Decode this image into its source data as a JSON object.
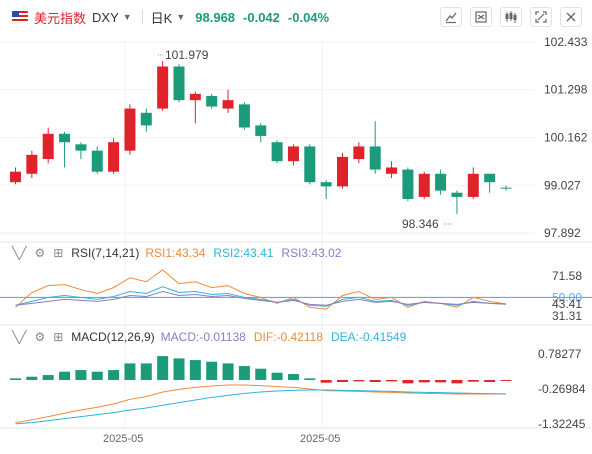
{
  "toolbar": {
    "name": "美元指数",
    "symbol": "DXY",
    "period": "日K",
    "price": "98.968",
    "change": "-0.042",
    "change_pct": "-0.04%"
  },
  "colors": {
    "up": "#e0222a",
    "down": "#1b9b7a",
    "rsi1": "#f08a3c",
    "rsi2": "#2bb6d8",
    "rsi3": "#8e7cc3",
    "dif": "#f08a3c",
    "dea": "#2bb6d8",
    "refline": "#5aa9ff"
  },
  "main_axis": {
    "ticks": [
      "102.433",
      "101.298",
      "100.162",
      "99.027",
      "97.892"
    ]
  },
  "annotations": {
    "high": "101.979",
    "low": "98.346"
  },
  "rsi": {
    "label": "RSI(7,14,21)",
    "rsi1": "RSI1:43.34",
    "rsi2": "RSI2:43.41",
    "rsi3": "RSI3:43.02",
    "ticks": [
      "71.58",
      "50.00",
      "43.41",
      "31.31"
    ]
  },
  "macd": {
    "label": "MACD(12,26,9)",
    "macd": "MACD:-0.01138",
    "dif": "DIF:-0.42118",
    "dea": "DEA:-0.41549",
    "ticks": [
      "0.78277",
      "-0.26984",
      "-1.32245"
    ]
  },
  "time_axis": [
    "2025-05",
    "2025-05"
  ],
  "chart_data": {
    "type": "candlestick",
    "ylim": [
      97.892,
      102.433
    ],
    "candles": [
      {
        "o": 99.1,
        "c": 99.35,
        "h": 99.45,
        "l": 99.05
      },
      {
        "o": 99.3,
        "c": 99.75,
        "h": 99.85,
        "l": 99.2
      },
      {
        "o": 99.65,
        "c": 100.25,
        "h": 100.4,
        "l": 99.55
      },
      {
        "o": 100.25,
        "c": 100.05,
        "h": 100.3,
        "l": 99.45
      },
      {
        "o": 100.0,
        "c": 99.85,
        "h": 100.05,
        "l": 99.65
      },
      {
        "o": 99.85,
        "c": 99.35,
        "h": 99.95,
        "l": 99.3
      },
      {
        "o": 99.35,
        "c": 100.05,
        "h": 100.15,
        "l": 99.3
      },
      {
        "o": 99.85,
        "c": 100.85,
        "h": 100.95,
        "l": 99.75
      },
      {
        "o": 100.75,
        "c": 100.45,
        "h": 100.85,
        "l": 100.3
      },
      {
        "o": 100.85,
        "c": 101.85,
        "h": 101.979,
        "l": 100.8
      },
      {
        "o": 101.85,
        "c": 101.05,
        "h": 101.9,
        "l": 101.0
      },
      {
        "o": 101.05,
        "c": 101.2,
        "h": 101.25,
        "l": 100.5
      },
      {
        "o": 101.15,
        "c": 100.9,
        "h": 101.2,
        "l": 100.85
      },
      {
        "o": 100.85,
        "c": 101.05,
        "h": 101.3,
        "l": 100.75
      },
      {
        "o": 100.95,
        "c": 100.4,
        "h": 101.0,
        "l": 100.35
      },
      {
        "o": 100.45,
        "c": 100.2,
        "h": 100.5,
        "l": 100.05
      },
      {
        "o": 100.05,
        "c": 99.6,
        "h": 100.1,
        "l": 99.55
      },
      {
        "o": 99.6,
        "c": 99.95,
        "h": 100.0,
        "l": 99.5
      },
      {
        "o": 99.95,
        "c": 99.1,
        "h": 100.0,
        "l": 99.05
      },
      {
        "o": 99.1,
        "c": 99.0,
        "h": 99.15,
        "l": 98.7
      },
      {
        "o": 99.0,
        "c": 99.7,
        "h": 99.8,
        "l": 98.95
      },
      {
        "o": 99.65,
        "c": 99.95,
        "h": 100.05,
        "l": 99.55
      },
      {
        "o": 99.95,
        "c": 99.4,
        "h": 100.55,
        "l": 99.3
      },
      {
        "o": 99.3,
        "c": 99.45,
        "h": 99.6,
        "l": 99.2
      },
      {
        "o": 99.4,
        "c": 98.7,
        "h": 99.45,
        "l": 98.65
      },
      {
        "o": 98.75,
        "c": 99.3,
        "h": 99.35,
        "l": 98.7
      },
      {
        "o": 99.3,
        "c": 98.9,
        "h": 99.4,
        "l": 98.8
      },
      {
        "o": 98.85,
        "c": 98.75,
        "h": 98.9,
        "l": 98.346
      },
      {
        "o": 98.75,
        "c": 99.3,
        "h": 99.45,
        "l": 98.7
      },
      {
        "o": 99.3,
        "c": 99.1,
        "h": 99.3,
        "l": 98.85
      },
      {
        "o": 98.97,
        "c": 98.968,
        "h": 99.02,
        "l": 98.9
      }
    ],
    "rsi": {
      "ylim": [
        25,
        82
      ],
      "rsi1": [
        40,
        55,
        62,
        63,
        58,
        54,
        60,
        70,
        66,
        78,
        64,
        66,
        60,
        62,
        54,
        50,
        44,
        50,
        40,
        38,
        52,
        56,
        48,
        50,
        40,
        46,
        44,
        40,
        50,
        46,
        43.34
      ],
      "rsi2": [
        42,
        46,
        50,
        52,
        50,
        48,
        51,
        56,
        54,
        61,
        55,
        56,
        53,
        54,
        50,
        48,
        45,
        48,
        42,
        41,
        48,
        50,
        46,
        47,
        42,
        45,
        44,
        42,
        46,
        44,
        43.41
      ],
      "rsi3": [
        42,
        44,
        46,
        48,
        47,
        46,
        48,
        52,
        51,
        56,
        52,
        53,
        51,
        52,
        49,
        47,
        45,
        47,
        43,
        42,
        46,
        48,
        45,
        46,
        43,
        45,
        44,
        43,
        45,
        44,
        43.02
      ],
      "refline": 50
    },
    "macd": {
      "ylim": [
        -1.32245,
        0.78277
      ],
      "hist": [
        0.05,
        0.1,
        0.15,
        0.25,
        0.3,
        0.25,
        0.3,
        0.5,
        0.5,
        0.72,
        0.65,
        0.6,
        0.55,
        0.5,
        0.42,
        0.34,
        0.22,
        0.18,
        0.05,
        -0.08,
        -0.06,
        -0.04,
        -0.06,
        -0.04,
        -0.1,
        -0.07,
        -0.07,
        -0.1,
        -0.05,
        -0.06,
        -0.01138
      ],
      "dif": [
        -1.28,
        -1.2,
        -1.1,
        -1.0,
        -0.9,
        -0.82,
        -0.72,
        -0.58,
        -0.5,
        -0.36,
        -0.28,
        -0.22,
        -0.18,
        -0.15,
        -0.15,
        -0.17,
        -0.2,
        -0.22,
        -0.27,
        -0.32,
        -0.33,
        -0.34,
        -0.36,
        -0.37,
        -0.39,
        -0.4,
        -0.41,
        -0.42,
        -0.42,
        -0.42,
        -0.42118
      ],
      "dea": [
        -1.32,
        -1.28,
        -1.22,
        -1.16,
        -1.1,
        -1.04,
        -0.98,
        -0.9,
        -0.84,
        -0.76,
        -0.68,
        -0.6,
        -0.52,
        -0.46,
        -0.4,
        -0.36,
        -0.33,
        -0.31,
        -0.3,
        -0.3,
        -0.31,
        -0.32,
        -0.33,
        -0.34,
        -0.36,
        -0.37,
        -0.38,
        -0.39,
        -0.4,
        -0.41,
        -0.41549
      ]
    }
  }
}
